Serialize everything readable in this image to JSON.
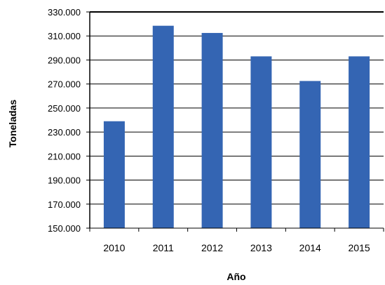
{
  "chart_data": {
    "type": "bar",
    "title": "",
    "xlabel": "Año",
    "ylabel": "Toneladas",
    "categories": [
      "2010",
      "2011",
      "2012",
      "2013",
      "2014",
      "2015"
    ],
    "values": [
      239000,
      318500,
      312500,
      293000,
      272500,
      293000
    ],
    "ylim": [
      150000,
      330000
    ],
    "yticks": [
      150000,
      170000,
      190000,
      210000,
      230000,
      250000,
      270000,
      290000,
      310000,
      330000
    ],
    "ytick_labels": [
      "150.000",
      "170.000",
      "190.000",
      "210.000",
      "230.000",
      "250.000",
      "270.000",
      "290.000",
      "310.000",
      "330.000"
    ],
    "grid": true,
    "legend": "none",
    "bar_color": "#3465b3",
    "grid_color": "#000000"
  }
}
